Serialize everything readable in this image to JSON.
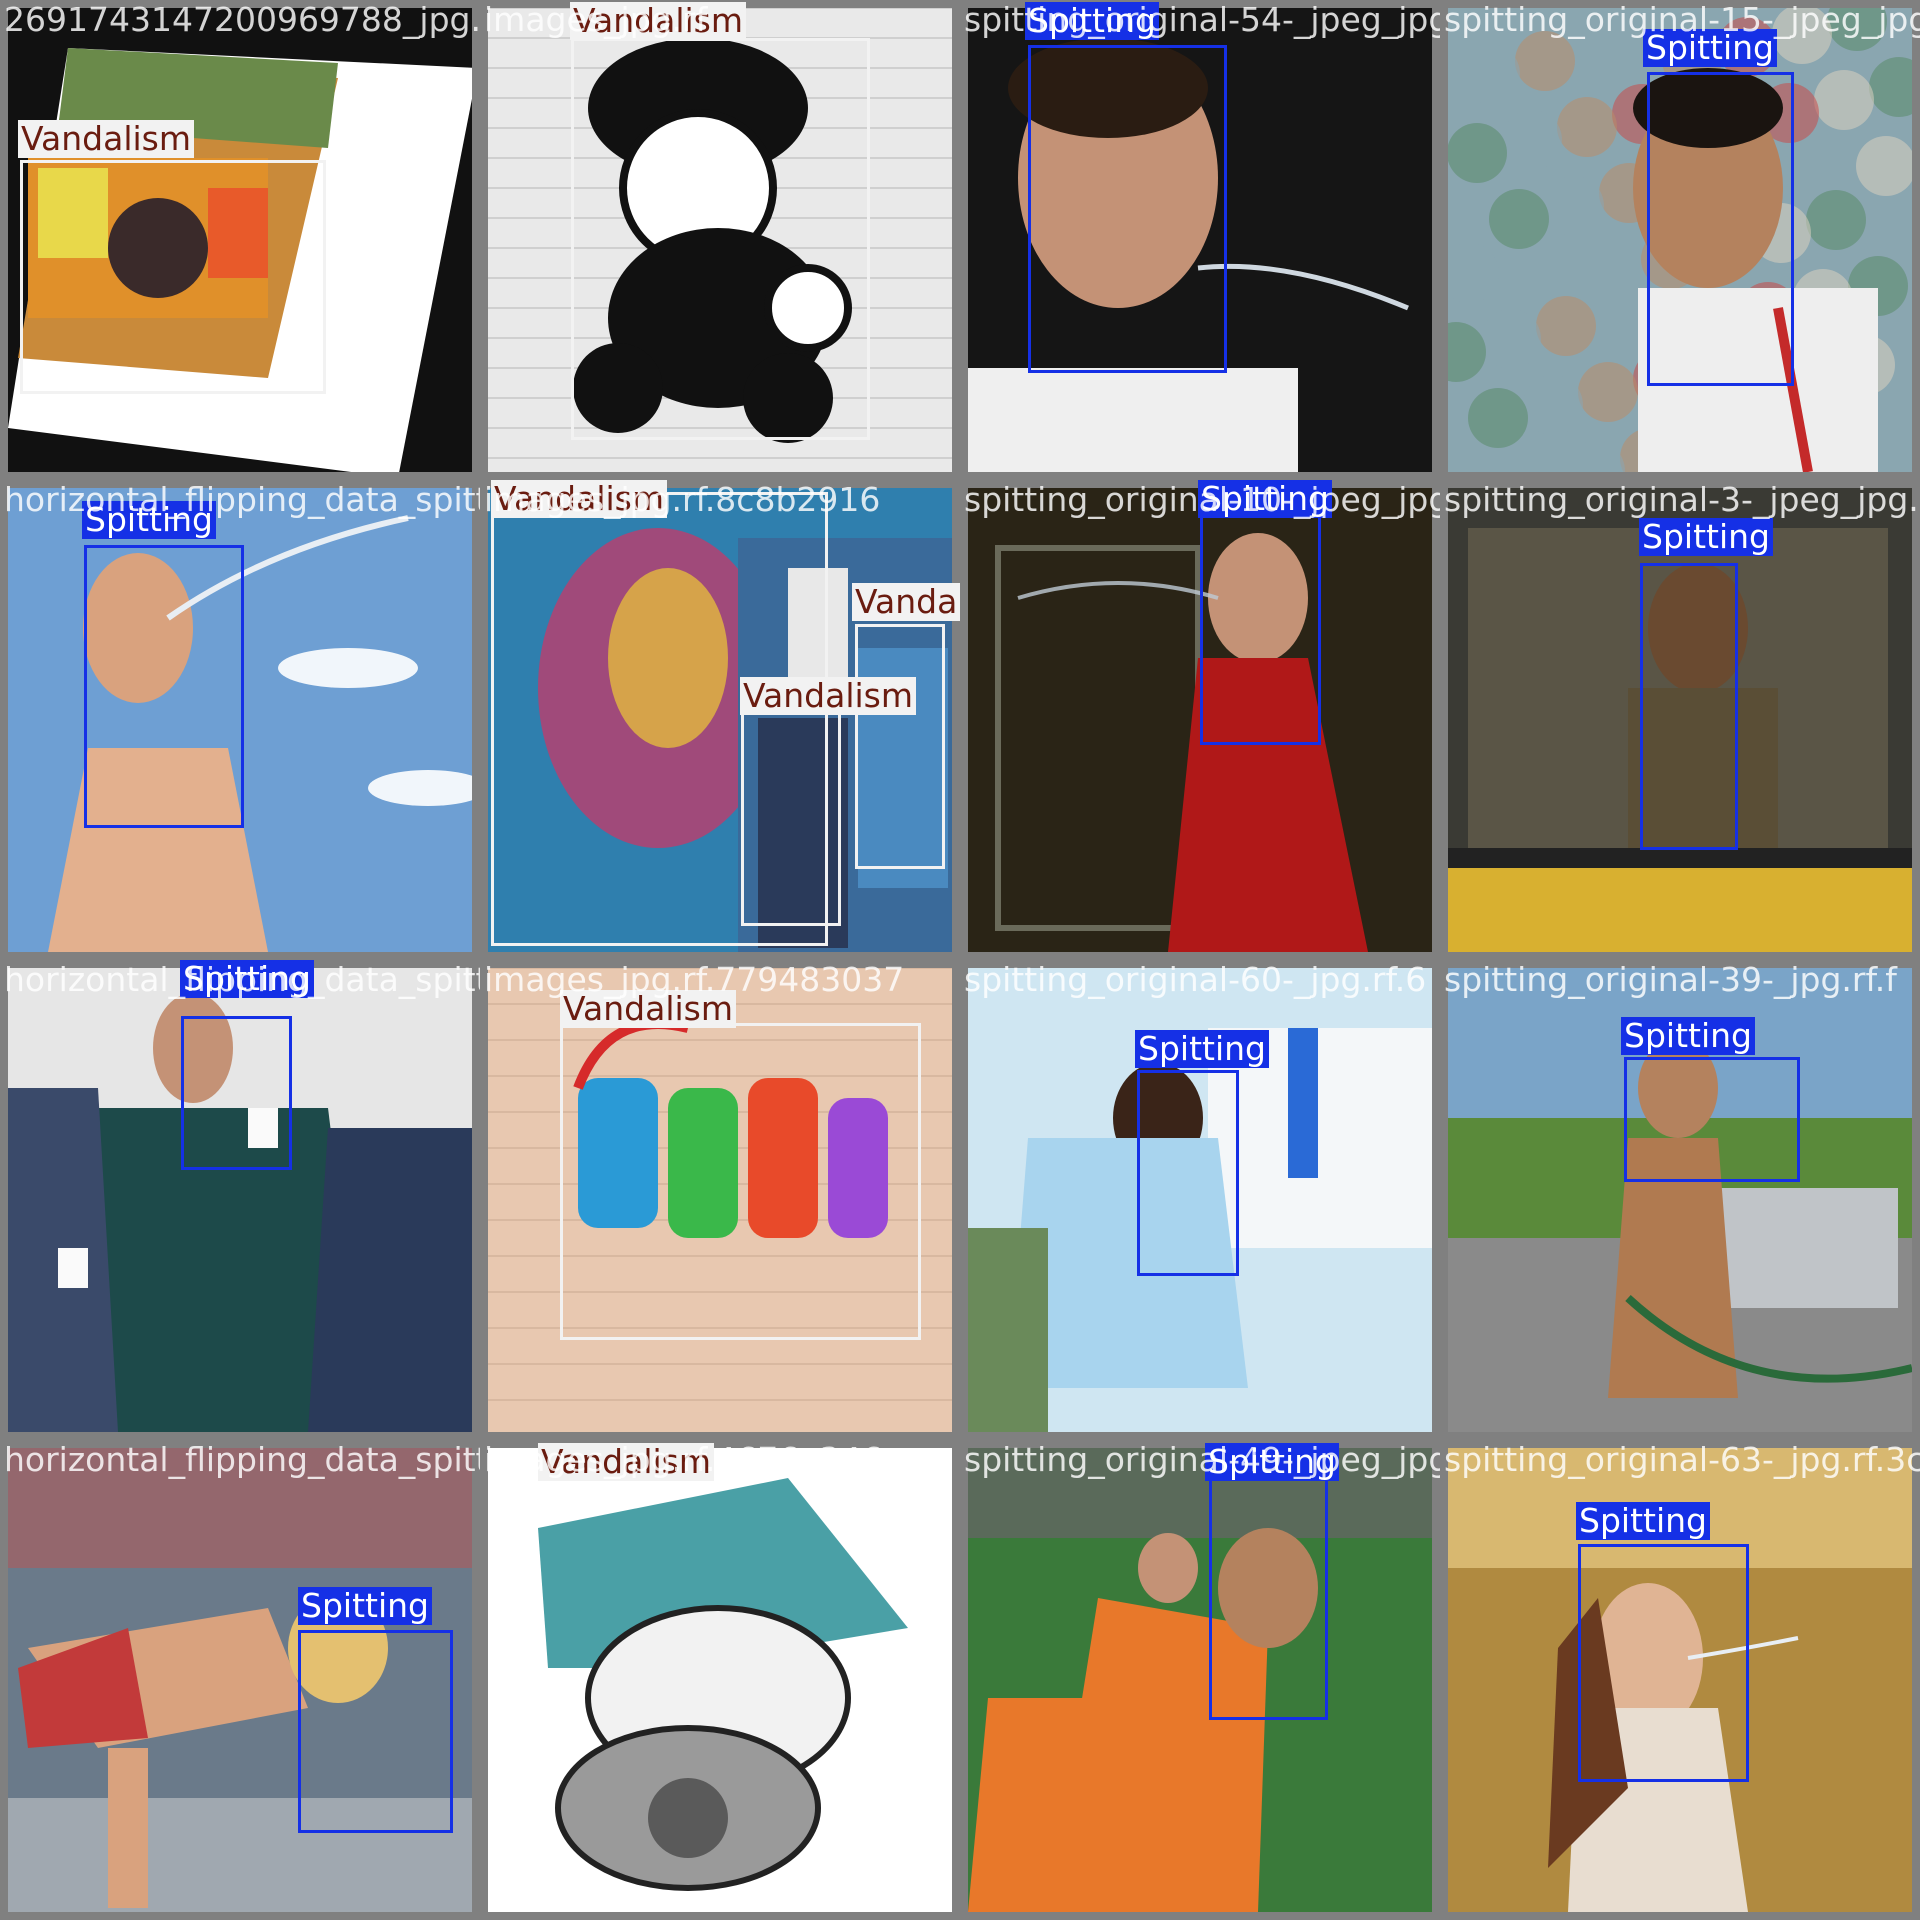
{
  "classes": {
    "Spitting": {
      "label": "Spitting",
      "color": "#1530e6",
      "text_color": "#ffffff"
    },
    "Vandalism": {
      "label": "Vandalism",
      "color": "#f2f2f2",
      "text_color": "#6a1c10"
    }
  },
  "tiles": [
    {
      "filename": "2691743147200969788_jpg.rf",
      "scene": "graffiti",
      "bg": [
        "#4a6a3a",
        "#c98a3a",
        "#2a2a2a"
      ],
      "boxes": [
        {
          "cls": "Vandalism"
        }
      ]
    },
    {
      "filename": "images_jpg.rf",
      "scene": "mario",
      "bg": [
        "#e9e9e9",
        "#d9d9d9",
        "#f2f2f2"
      ],
      "boxes": [
        {
          "cls": "Vandalism"
        }
      ]
    },
    {
      "filename": "spitting_original-54-_jpeg_jpg.rf",
      "scene": "soccer-dark",
      "bg": [
        "#1d1d1d",
        "#3a3a3a",
        "#cfcfcf"
      ],
      "boxes": [
        {
          "cls": "Spitting"
        }
      ]
    },
    {
      "filename": "spitting_original-15-_jpeg_jpg.rf",
      "scene": "blur-crowd",
      "bg": [
        "#8aa6b0",
        "#b98c6a",
        "#d8d0c0"
      ],
      "boxes": [
        {
          "cls": "Spitting"
        }
      ]
    },
    {
      "filename": "horizontal_flipping_data_spitting-2-_jpg.rf",
      "scene": "sky",
      "bg": [
        "#6e9fd3",
        "#a6c8ea",
        "#e0b896"
      ],
      "boxes": [
        {
          "cls": "Spitting"
        }
      ]
    },
    {
      "filename": "images_jpg.rf.8c8b2916",
      "scene": "mural",
      "bg": [
        "#2f7fae",
        "#a04a7a",
        "#d6a34a"
      ],
      "boxes": [
        {
          "cls": "Vandalism"
        },
        {
          "cls": "Vandalism"
        },
        {
          "cls": "Vandalism"
        }
      ]
    },
    {
      "filename": "spitting_original-10-_jpeg_jpg.rf",
      "scene": "soccer-red",
      "bg": [
        "#2a2416",
        "#b01818",
        "#4a3a20"
      ],
      "boxes": [
        {
          "cls": "Spitting"
        }
      ]
    },
    {
      "filename": "spitting_original-3-_jpeg_jpg.rf",
      "scene": "bus",
      "bg": [
        "#3a3a34",
        "#6a6350",
        "#d8b030"
      ],
      "boxes": [
        {
          "cls": "Spitting"
        }
      ]
    },
    {
      "filename": "horizontal_flipping_data_spitting-58-_jpg.rf",
      "scene": "office",
      "bg": [
        "#e6e6e6",
        "#1d4a4a",
        "#2a3a5a"
      ],
      "boxes": [
        {
          "cls": "Spitting"
        }
      ]
    },
    {
      "filename": "images_jpg.rf.779483037",
      "scene": "music",
      "bg": [
        "#e8c8b0",
        "#d9b8a0",
        "#f0d8c6"
      ],
      "boxes": [
        {
          "cls": "Vandalism"
        }
      ]
    },
    {
      "filename": "spitting_original-60-_jpg.rf.6",
      "scene": "dentist",
      "bg": [
        "#cfe6f2",
        "#f4f7f9",
        "#7aa6c4"
      ],
      "boxes": [
        {
          "cls": "Spitting"
        }
      ]
    },
    {
      "filename": "spitting_original-39-_jpg.rf.f",
      "scene": "rooftop",
      "bg": [
        "#7aa4c8",
        "#6a8a3a",
        "#8a8a8a"
      ],
      "boxes": [
        {
          "cls": "Spitting"
        }
      ]
    },
    {
      "filename": "horizontal_flipping_data_spitting-jpg.rf",
      "scene": "runner",
      "bg": [
        "#6a7a8a",
        "#c23a3a",
        "#a0a8b0"
      ],
      "boxes": [
        {
          "cls": "Spitting"
        }
      ]
    },
    {
      "filename": "images_jpg.rf.4676a346",
      "scene": "mask",
      "bg": [
        "#ffffff",
        "#f4f4f4",
        "#ffffff"
      ],
      "boxes": [
        {
          "cls": "Vandalism"
        }
      ]
    },
    {
      "filename": "spitting_original-49-_jpeg_jpg.rf",
      "scene": "orange-players",
      "bg": [
        "#3a7a3a",
        "#e8782a",
        "#2a5a2a"
      ],
      "boxes": [
        {
          "cls": "Spitting"
        }
      ]
    },
    {
      "filename": "spitting_original-63-_jpg.rf.3c",
      "scene": "field",
      "bg": [
        "#b08a40",
        "#d8b870",
        "#6a4a20"
      ],
      "boxes": [
        {
          "cls": "Spitting"
        }
      ]
    }
  ]
}
